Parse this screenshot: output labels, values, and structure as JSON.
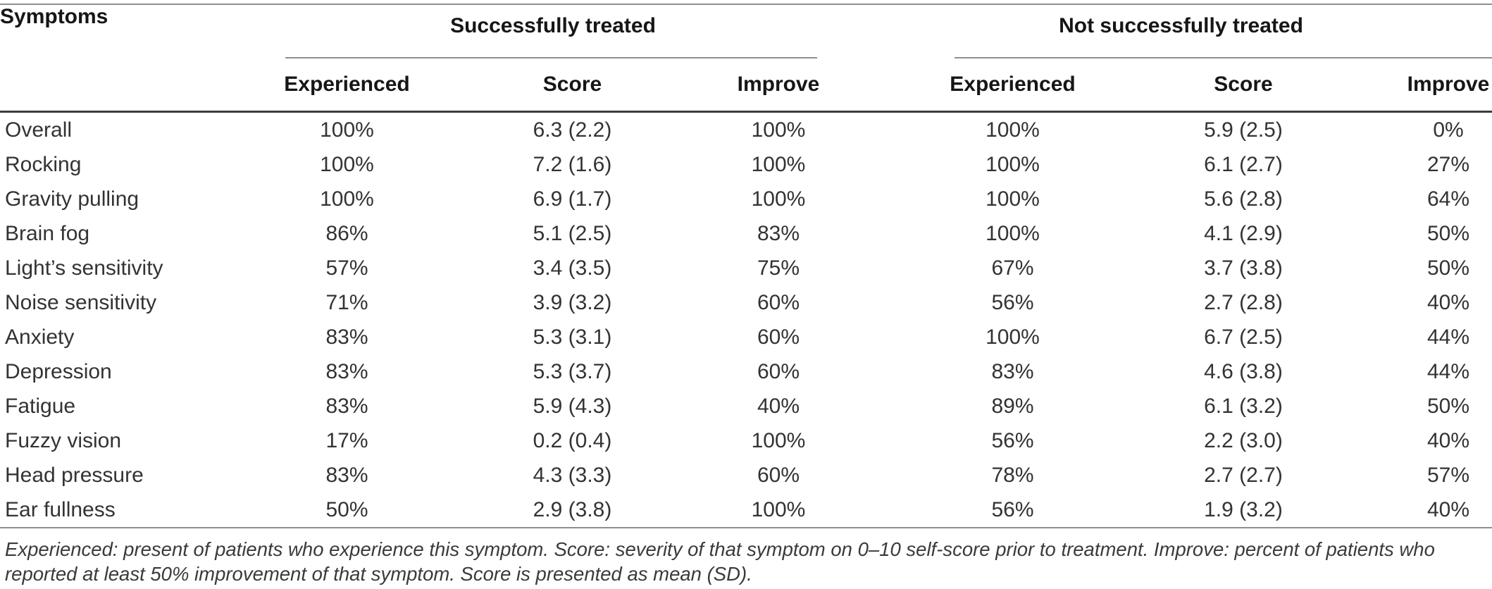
{
  "table": {
    "col1_header": "Symptoms",
    "groups": [
      {
        "label": "Successfully treated"
      },
      {
        "label": "Not successfully treated"
      }
    ],
    "subheaders": [
      "Experienced",
      "Score",
      "Improve",
      "Experienced",
      "Score",
      "Improve"
    ],
    "rows": [
      {
        "symptom": "Overall",
        "values": [
          "100%",
          "6.3 (2.2)",
          "100%",
          "100%",
          "5.9 (2.5)",
          "0%"
        ]
      },
      {
        "symptom": "Rocking",
        "values": [
          "100%",
          "7.2 (1.6)",
          "100%",
          "100%",
          "6.1 (2.7)",
          "27%"
        ]
      },
      {
        "symptom": "Gravity pulling",
        "values": [
          "100%",
          "6.9 (1.7)",
          "100%",
          "100%",
          "5.6 (2.8)",
          "64%"
        ]
      },
      {
        "symptom": "Brain fog",
        "values": [
          "86%",
          "5.1 (2.5)",
          "83%",
          "100%",
          "4.1 (2.9)",
          "50%"
        ]
      },
      {
        "symptom": "Light’s sensitivity",
        "values": [
          "57%",
          "3.4 (3.5)",
          "75%",
          "67%",
          "3.7 (3.8)",
          "50%"
        ]
      },
      {
        "symptom": "Noise sensitivity",
        "values": [
          "71%",
          "3.9 (3.2)",
          "60%",
          "56%",
          "2.7 (2.8)",
          "40%"
        ]
      },
      {
        "symptom": "Anxiety",
        "values": [
          "83%",
          "5.3 (3.1)",
          "60%",
          "100%",
          "6.7 (2.5)",
          "44%"
        ]
      },
      {
        "symptom": "Depression",
        "values": [
          "83%",
          "5.3 (3.7)",
          "60%",
          "83%",
          "4.6 (3.8)",
          "44%"
        ]
      },
      {
        "symptom": "Fatigue",
        "values": [
          "83%",
          "5.9 (4.3)",
          "40%",
          "89%",
          "6.1 (3.2)",
          "50%"
        ]
      },
      {
        "symptom": "Fuzzy vision",
        "values": [
          "17%",
          "0.2 (0.4)",
          "100%",
          "56%",
          "2.2 (3.0)",
          "40%"
        ]
      },
      {
        "symptom": "Head pressure",
        "values": [
          "83%",
          "4.3 (3.3)",
          "60%",
          "78%",
          "2.7 (2.7)",
          "57%"
        ]
      },
      {
        "symptom": "Ear fullness",
        "values": [
          "50%",
          "2.9 (3.8)",
          "100%",
          "56%",
          "1.9 (3.2)",
          "40%"
        ]
      }
    ],
    "footnote": "Experienced: present of patients who experience this symptom. Score: severity of that symptom on 0–10 self-score prior to treatment. Improve: percent of patients who reported at least 50% improvement of that symptom. Score is presented as mean (SD)."
  },
  "colors": {
    "header_text": "#161616",
    "body_text": "#333333",
    "hairline": "#8f8f8f",
    "heavy_rule": "#3c3c3c",
    "background": "#ffffff"
  }
}
